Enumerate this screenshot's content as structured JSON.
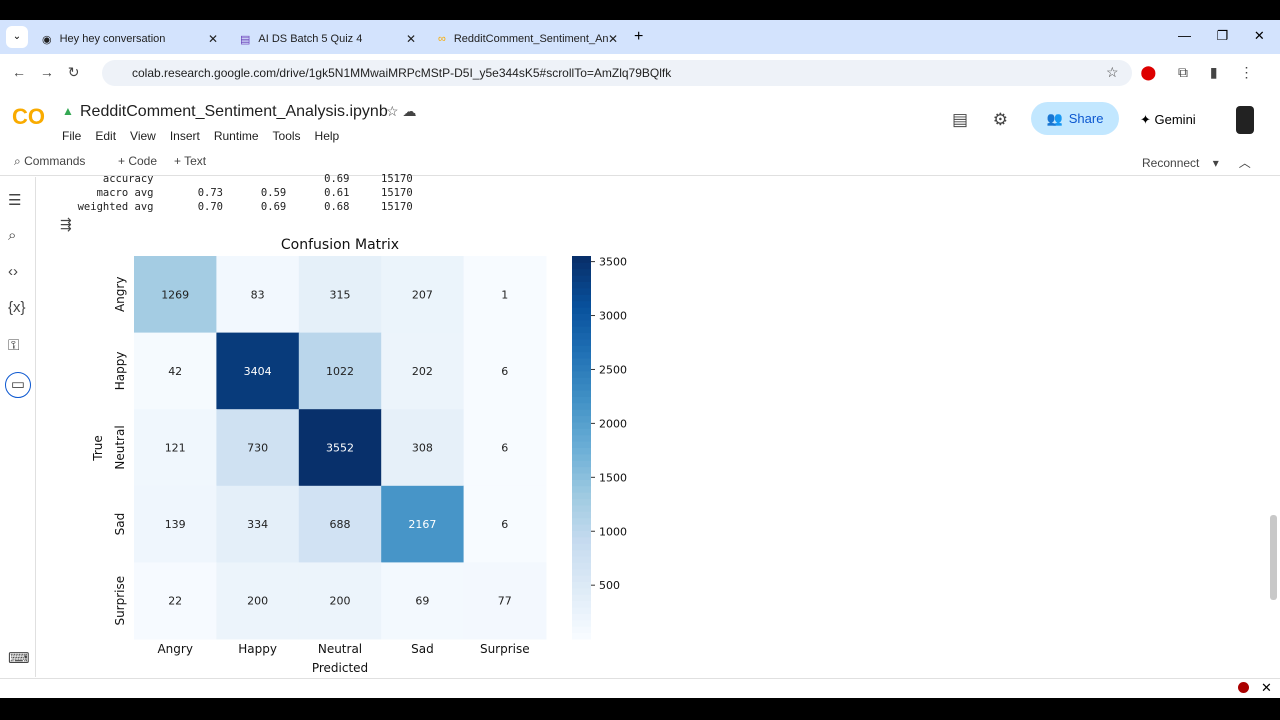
{
  "browser": {
    "tabs": [
      {
        "title": "Hey hey conversation"
      },
      {
        "title": "AI DS Batch 5 Quiz 4"
      },
      {
        "title": "RedditComment_Sentiment_An"
      }
    ],
    "url": "colab.research.google.com/drive/1gk5N1MMwaiMRPcMStP-D5I_y5e344sK5#scrollTo=AmZlq79BQlfk"
  },
  "colab": {
    "logo": "CO",
    "title": "RedditComment_Sentiment_Analysis.ipynb",
    "menu": [
      "File",
      "Edit",
      "View",
      "Insert",
      "Runtime",
      "Tools",
      "Help"
    ],
    "share": "Share",
    "gemini": "Gemini",
    "commands": "Commands",
    "add_code": "+ Code",
    "add_text": "+ Text",
    "reconnect": "Reconnect"
  },
  "output_text": "         accuracy                           0.69     15170\n        macro avg       0.73      0.59      0.61     15170\n     weighted avg       0.70      0.69      0.68     15170",
  "chart_data": {
    "type": "heatmap",
    "title": "Confusion Matrix",
    "xlabel": "Predicted",
    "ylabel": "True",
    "colormap": "Blues",
    "x_categories": [
      "Angry",
      "Happy",
      "Neutral",
      "Sad",
      "Surprise"
    ],
    "y_categories": [
      "Angry",
      "Happy",
      "Neutral",
      "Sad",
      "Surprise"
    ],
    "values": [
      [
        1269,
        83,
        315,
        207,
        1
      ],
      [
        42,
        3404,
        1022,
        202,
        6
      ],
      [
        121,
        730,
        3552,
        308,
        6
      ],
      [
        139,
        334,
        688,
        2167,
        6
      ],
      [
        22,
        200,
        200,
        69,
        77
      ]
    ],
    "colorbar_ticks": [
      500,
      1000,
      1500,
      2000,
      2500,
      3000,
      3500
    ],
    "colorbar_range": [
      1,
      3552
    ]
  }
}
